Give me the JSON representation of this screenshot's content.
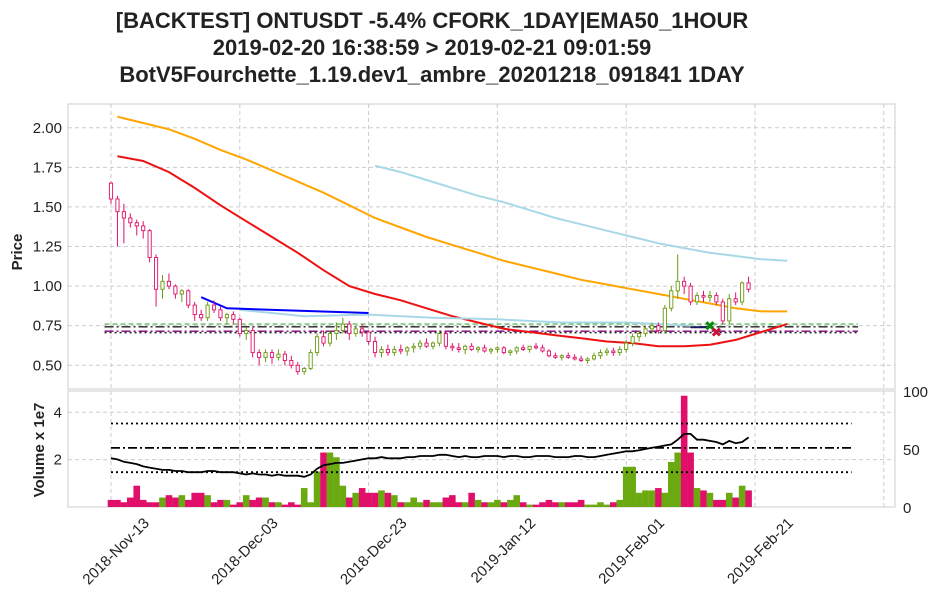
{
  "chart_data": {
    "type": "candlestick-with-volume",
    "title": {
      "line1": "[BACKTEST] ONTUSDT -5.4% CFORK_1DAY|EMA50_1HOUR",
      "line2": "2019-02-20 16:38:59 > 2019-02-21 09:01:59",
      "line3": "BotV5Fourchette_1.19.dev1_ambre_20201218_091841 1DAY"
    },
    "x_tick_labels": [
      "2018-Nov-13",
      "2018-Dec-03",
      "2018-Dec-23",
      "2019-Jan-12",
      "2019-Feb-01",
      "2019-Feb-21"
    ],
    "x_ticks_day_index": [
      0,
      20,
      40,
      60,
      80,
      100
    ],
    "price_panel": {
      "ylabel": "Price",
      "ylim": [
        0.35,
        2.15
      ],
      "yticks": [
        0.5,
        0.75,
        1.0,
        1.25,
        1.5,
        1.75,
        2.0
      ],
      "ytick_labels": [
        "0.50",
        "0.75",
        "1.00",
        "1.25",
        "1.50",
        "1.75",
        "2.00"
      ],
      "candles": [
        [
          1.65,
          1.66,
          1.52,
          1.55
        ],
        [
          1.55,
          1.57,
          1.25,
          1.47
        ],
        [
          1.47,
          1.52,
          1.27,
          1.43
        ],
        [
          1.43,
          1.46,
          1.37,
          1.4
        ],
        [
          1.4,
          1.42,
          1.32,
          1.38
        ],
        [
          1.38,
          1.41,
          1.3,
          1.35
        ],
        [
          1.35,
          1.36,
          1.15,
          1.18
        ],
        [
          1.18,
          1.2,
          0.87,
          0.98
        ],
        [
          0.98,
          1.07,
          0.92,
          1.03
        ],
        [
          1.03,
          1.08,
          0.98,
          1.0
        ],
        [
          1.0,
          1.01,
          0.92,
          0.95
        ],
        [
          0.95,
          0.98,
          0.9,
          0.97
        ],
        [
          0.97,
          0.98,
          0.86,
          0.88
        ],
        [
          0.88,
          0.9,
          0.78,
          0.82
        ],
        [
          0.82,
          0.85,
          0.78,
          0.8
        ],
        [
          0.8,
          0.9,
          0.78,
          0.88
        ],
        [
          0.88,
          0.91,
          0.83,
          0.85
        ],
        [
          0.85,
          0.87,
          0.78,
          0.8
        ],
        [
          0.8,
          0.83,
          0.76,
          0.82
        ],
        [
          0.82,
          0.84,
          0.76,
          0.79
        ],
        [
          0.79,
          0.8,
          0.68,
          0.7
        ],
        [
          0.7,
          0.74,
          0.66,
          0.72
        ],
        [
          0.72,
          0.74,
          0.55,
          0.58
        ],
        [
          0.58,
          0.6,
          0.5,
          0.55
        ],
        [
          0.55,
          0.6,
          0.52,
          0.58
        ],
        [
          0.58,
          0.6,
          0.51,
          0.55
        ],
        [
          0.55,
          0.6,
          0.53,
          0.57
        ],
        [
          0.57,
          0.59,
          0.5,
          0.53
        ],
        [
          0.53,
          0.56,
          0.48,
          0.5
        ],
        [
          0.5,
          0.52,
          0.44,
          0.46
        ],
        [
          0.46,
          0.49,
          0.44,
          0.48
        ],
        [
          0.48,
          0.6,
          0.47,
          0.58
        ],
        [
          0.58,
          0.7,
          0.56,
          0.68
        ],
        [
          0.68,
          0.72,
          0.62,
          0.64
        ],
        [
          0.64,
          0.72,
          0.62,
          0.7
        ],
        [
          0.7,
          0.77,
          0.66,
          0.72
        ],
        [
          0.72,
          0.8,
          0.7,
          0.76
        ],
        [
          0.76,
          0.78,
          0.66,
          0.7
        ],
        [
          0.7,
          0.75,
          0.68,
          0.73
        ],
        [
          0.73,
          0.76,
          0.68,
          0.71
        ],
        [
          0.71,
          0.72,
          0.63,
          0.65
        ],
        [
          0.65,
          0.68,
          0.55,
          0.58
        ],
        [
          0.58,
          0.62,
          0.55,
          0.6
        ],
        [
          0.6,
          0.63,
          0.56,
          0.58
        ],
        [
          0.58,
          0.62,
          0.56,
          0.6
        ],
        [
          0.6,
          0.63,
          0.57,
          0.59
        ],
        [
          0.59,
          0.62,
          0.56,
          0.61
        ],
        [
          0.61,
          0.64,
          0.58,
          0.62
        ],
        [
          0.62,
          0.66,
          0.6,
          0.64
        ],
        [
          0.64,
          0.67,
          0.61,
          0.62
        ],
        [
          0.62,
          0.65,
          0.6,
          0.64
        ],
        [
          0.64,
          0.72,
          0.62,
          0.7
        ],
        [
          0.7,
          0.72,
          0.6,
          0.62
        ],
        [
          0.62,
          0.64,
          0.59,
          0.61
        ],
        [
          0.61,
          0.64,
          0.58,
          0.6
        ],
        [
          0.6,
          0.63,
          0.57,
          0.62
        ],
        [
          0.62,
          0.64,
          0.59,
          0.6
        ],
        [
          0.6,
          0.62,
          0.58,
          0.61
        ],
        [
          0.61,
          0.63,
          0.58,
          0.59
        ],
        [
          0.59,
          0.61,
          0.57,
          0.6
        ],
        [
          0.6,
          0.62,
          0.58,
          0.61
        ],
        [
          0.61,
          0.62,
          0.57,
          0.58
        ],
        [
          0.58,
          0.6,
          0.56,
          0.59
        ],
        [
          0.59,
          0.62,
          0.57,
          0.61
        ],
        [
          0.61,
          0.63,
          0.59,
          0.6
        ],
        [
          0.6,
          0.62,
          0.58,
          0.62
        ],
        [
          0.62,
          0.64,
          0.6,
          0.61
        ],
        [
          0.61,
          0.63,
          0.58,
          0.59
        ],
        [
          0.59,
          0.6,
          0.55,
          0.56
        ],
        [
          0.56,
          0.58,
          0.54,
          0.55
        ],
        [
          0.55,
          0.57,
          0.53,
          0.56
        ],
        [
          0.56,
          0.58,
          0.54,
          0.55
        ],
        [
          0.55,
          0.57,
          0.53,
          0.54
        ],
        [
          0.54,
          0.56,
          0.52,
          0.53
        ],
        [
          0.53,
          0.55,
          0.51,
          0.54
        ],
        [
          0.54,
          0.58,
          0.53,
          0.56
        ],
        [
          0.56,
          0.6,
          0.54,
          0.58
        ],
        [
          0.58,
          0.61,
          0.56,
          0.59
        ],
        [
          0.59,
          0.61,
          0.56,
          0.58
        ],
        [
          0.58,
          0.62,
          0.56,
          0.6
        ],
        [
          0.6,
          0.66,
          0.58,
          0.64
        ],
        [
          0.64,
          0.7,
          0.62,
          0.68
        ],
        [
          0.68,
          0.72,
          0.65,
          0.7
        ],
        [
          0.7,
          0.75,
          0.68,
          0.73
        ],
        [
          0.73,
          0.77,
          0.7,
          0.75
        ],
        [
          0.75,
          0.77,
          0.7,
          0.72
        ],
        [
          0.72,
          0.88,
          0.7,
          0.86
        ],
        [
          0.86,
          1.0,
          0.84,
          0.97
        ],
        [
          0.97,
          1.2,
          0.92,
          1.03
        ],
        [
          1.03,
          1.06,
          0.95,
          1.0
        ],
        [
          1.0,
          1.02,
          0.88,
          0.9
        ],
        [
          0.9,
          0.96,
          0.88,
          0.94
        ],
        [
          0.94,
          0.97,
          0.9,
          0.93
        ],
        [
          0.93,
          0.97,
          0.9,
          0.94
        ],
        [
          0.94,
          0.96,
          0.88,
          0.9
        ],
        [
          0.9,
          0.92,
          0.76,
          0.78
        ],
        [
          0.78,
          0.95,
          0.76,
          0.92
        ],
        [
          0.92,
          0.96,
          0.88,
          0.9
        ],
        [
          0.9,
          1.03,
          0.88,
          1.02
        ],
        [
          1.02,
          1.06,
          0.96,
          0.98
        ]
      ],
      "series": [
        {
          "name": "",
          "color": "#ffa500",
          "start": 1,
          "values": [
            2.07,
            2.03,
            1.99,
            1.93,
            1.86,
            1.8,
            1.73,
            1.66,
            1.59,
            1.51,
            1.43,
            1.37,
            1.31,
            1.26,
            1.21,
            1.16,
            1.12,
            1.08,
            1.04,
            1.01,
            0.98,
            0.95,
            0.92,
            0.89,
            0.86,
            0.84,
            0.84
          ]
        },
        {
          "name": "",
          "color": "#ee1111",
          "start": 1,
          "values": [
            1.82,
            1.79,
            1.72,
            1.62,
            1.51,
            1.41,
            1.31,
            1.21,
            1.1,
            1.0,
            0.95,
            0.91,
            0.86,
            0.81,
            0.77,
            0.73,
            0.71,
            0.69,
            0.67,
            0.65,
            0.64,
            0.62,
            0.62,
            0.63,
            0.66,
            0.71,
            0.76
          ]
        },
        {
          "name": "",
          "color": "#a8d8e8",
          "start": 41,
          "values": [
            1.76,
            1.72,
            1.67,
            1.62,
            1.57,
            1.53,
            1.48,
            1.43,
            1.39,
            1.35,
            1.31,
            1.27,
            1.24,
            1.21,
            1.19,
            1.17,
            1.16
          ]
        },
        {
          "name": "",
          "color": "#a8d8e8",
          "points": [
            [
              20,
              0.85
            ],
            [
              25,
              0.83
            ],
            [
              30,
              0.81
            ],
            [
              40,
              0.82
            ],
            [
              50,
              0.8
            ],
            [
              60,
              0.79
            ],
            [
              70,
              0.77
            ],
            [
              80,
              0.77
            ],
            [
              90,
              0.75
            ]
          ]
        },
        {
          "name": "",
          "color": "#0000ff",
          "points": [
            [
              14,
              0.93
            ],
            [
              18,
              0.86
            ],
            [
              40,
              0.83
            ]
          ]
        },
        {
          "name": "",
          "color": "#1a1a60",
          "points": [
            [
              90,
              0.74
            ],
            [
              93,
              0.74
            ]
          ]
        }
      ],
      "hlines": [
        {
          "value": 0.76,
          "color": "#66bb66",
          "style": "dash"
        },
        {
          "value": 0.743,
          "color": "#222222",
          "style": "dashdot"
        },
        {
          "value": 0.715,
          "color": "#800080",
          "style": "dashdot"
        },
        {
          "value": 0.706,
          "color": "#222222",
          "style": "dotted"
        }
      ],
      "markers": [
        {
          "x": 93,
          "value": 0.75,
          "color": "#0a8a0a"
        },
        {
          "x": 94,
          "value": 0.71,
          "color": "#cc1133"
        }
      ]
    },
    "volume_panel": {
      "ylabel": "Volume x 1e7",
      "ylim": [
        0,
        4.9
      ],
      "yticks": [
        2,
        4
      ],
      "ytick_labels": [
        "2",
        "4"
      ],
      "right_ylim": [
        0,
        100
      ],
      "right_yticks": [
        0,
        50,
        100
      ],
      "right_ytick_labels": [
        "0",
        "50",
        "100"
      ],
      "volumes": [
        0.3,
        0.3,
        0.2,
        0.4,
        0.9,
        0.3,
        0.2,
        0.2,
        0.4,
        0.5,
        0.4,
        0.5,
        0.3,
        0.6,
        0.6,
        0.5,
        0.2,
        0.3,
        0.3,
        0.1,
        0.2,
        0.5,
        0.3,
        0.4,
        0.4,
        0.2,
        0.2,
        0.1,
        0.2,
        0.1,
        0.8,
        0.2,
        1.5,
        2.3,
        2.3,
        2.1,
        0.9,
        0.4,
        0.6,
        0.8,
        0.6,
        0.6,
        0.7,
        0.6,
        0.5,
        0.2,
        0.2,
        0.4,
        0.2,
        0.3,
        0.2,
        0.2,
        0.4,
        0.5,
        0.2,
        0.2,
        0.6,
        0.3,
        0.2,
        0.2,
        0.3,
        0.2,
        0.3,
        0.5,
        0.2,
        0.1,
        0.1,
        0.2,
        0.3,
        0.2,
        0.2,
        0.2,
        0.2,
        0.3,
        0.1,
        0.1,
        0.2,
        0.1,
        0.2,
        0.3,
        1.7,
        1.7,
        0.6,
        0.7,
        0.7,
        0.8,
        0.6,
        1.9,
        2.3,
        4.7,
        2.3,
        0.8,
        0.7,
        0.6,
        0.3,
        0.3,
        0.6,
        0.4,
        0.9,
        0.7
      ],
      "rsi": [
        42,
        41,
        39,
        38,
        37,
        35,
        34,
        33,
        32,
        32,
        31,
        31,
        30,
        30,
        30,
        31,
        31,
        30,
        30,
        30,
        29,
        28,
        29,
        28,
        28,
        27,
        28,
        27,
        27,
        27,
        26,
        28,
        33,
        36,
        37,
        38,
        38,
        39,
        40,
        41,
        42,
        42,
        43,
        42,
        42,
        42,
        43,
        43,
        44,
        44,
        44,
        45,
        45,
        44,
        43,
        44,
        43,
        43,
        44,
        44,
        44,
        43,
        44,
        44,
        43,
        43,
        44,
        44,
        44,
        43,
        43,
        43,
        44,
        44,
        43,
        43,
        44,
        45,
        46,
        47,
        48,
        48,
        49,
        50,
        51,
        52,
        53,
        54,
        58,
        63,
        63,
        58,
        58,
        57,
        56,
        54,
        57,
        55,
        56,
        60
      ],
      "rsi_color": "#000000",
      "hlines_pct": [
        {
          "value": 72,
          "color": "#000000",
          "style": "dotted"
        },
        {
          "value": 51,
          "color": "#000000",
          "style": "dashdot"
        },
        {
          "value": 30,
          "color": "#000000",
          "style": "dotted"
        }
      ]
    },
    "colors": {
      "candle_up": "#6a9a10",
      "candle_down": "#e0106a",
      "volume_up": "#6aaa10",
      "volume_down": "#e0106a",
      "grid": "#cccccc",
      "frame": "#dddddd",
      "text": "#222222"
    },
    "grid": true,
    "legend": "none"
  }
}
